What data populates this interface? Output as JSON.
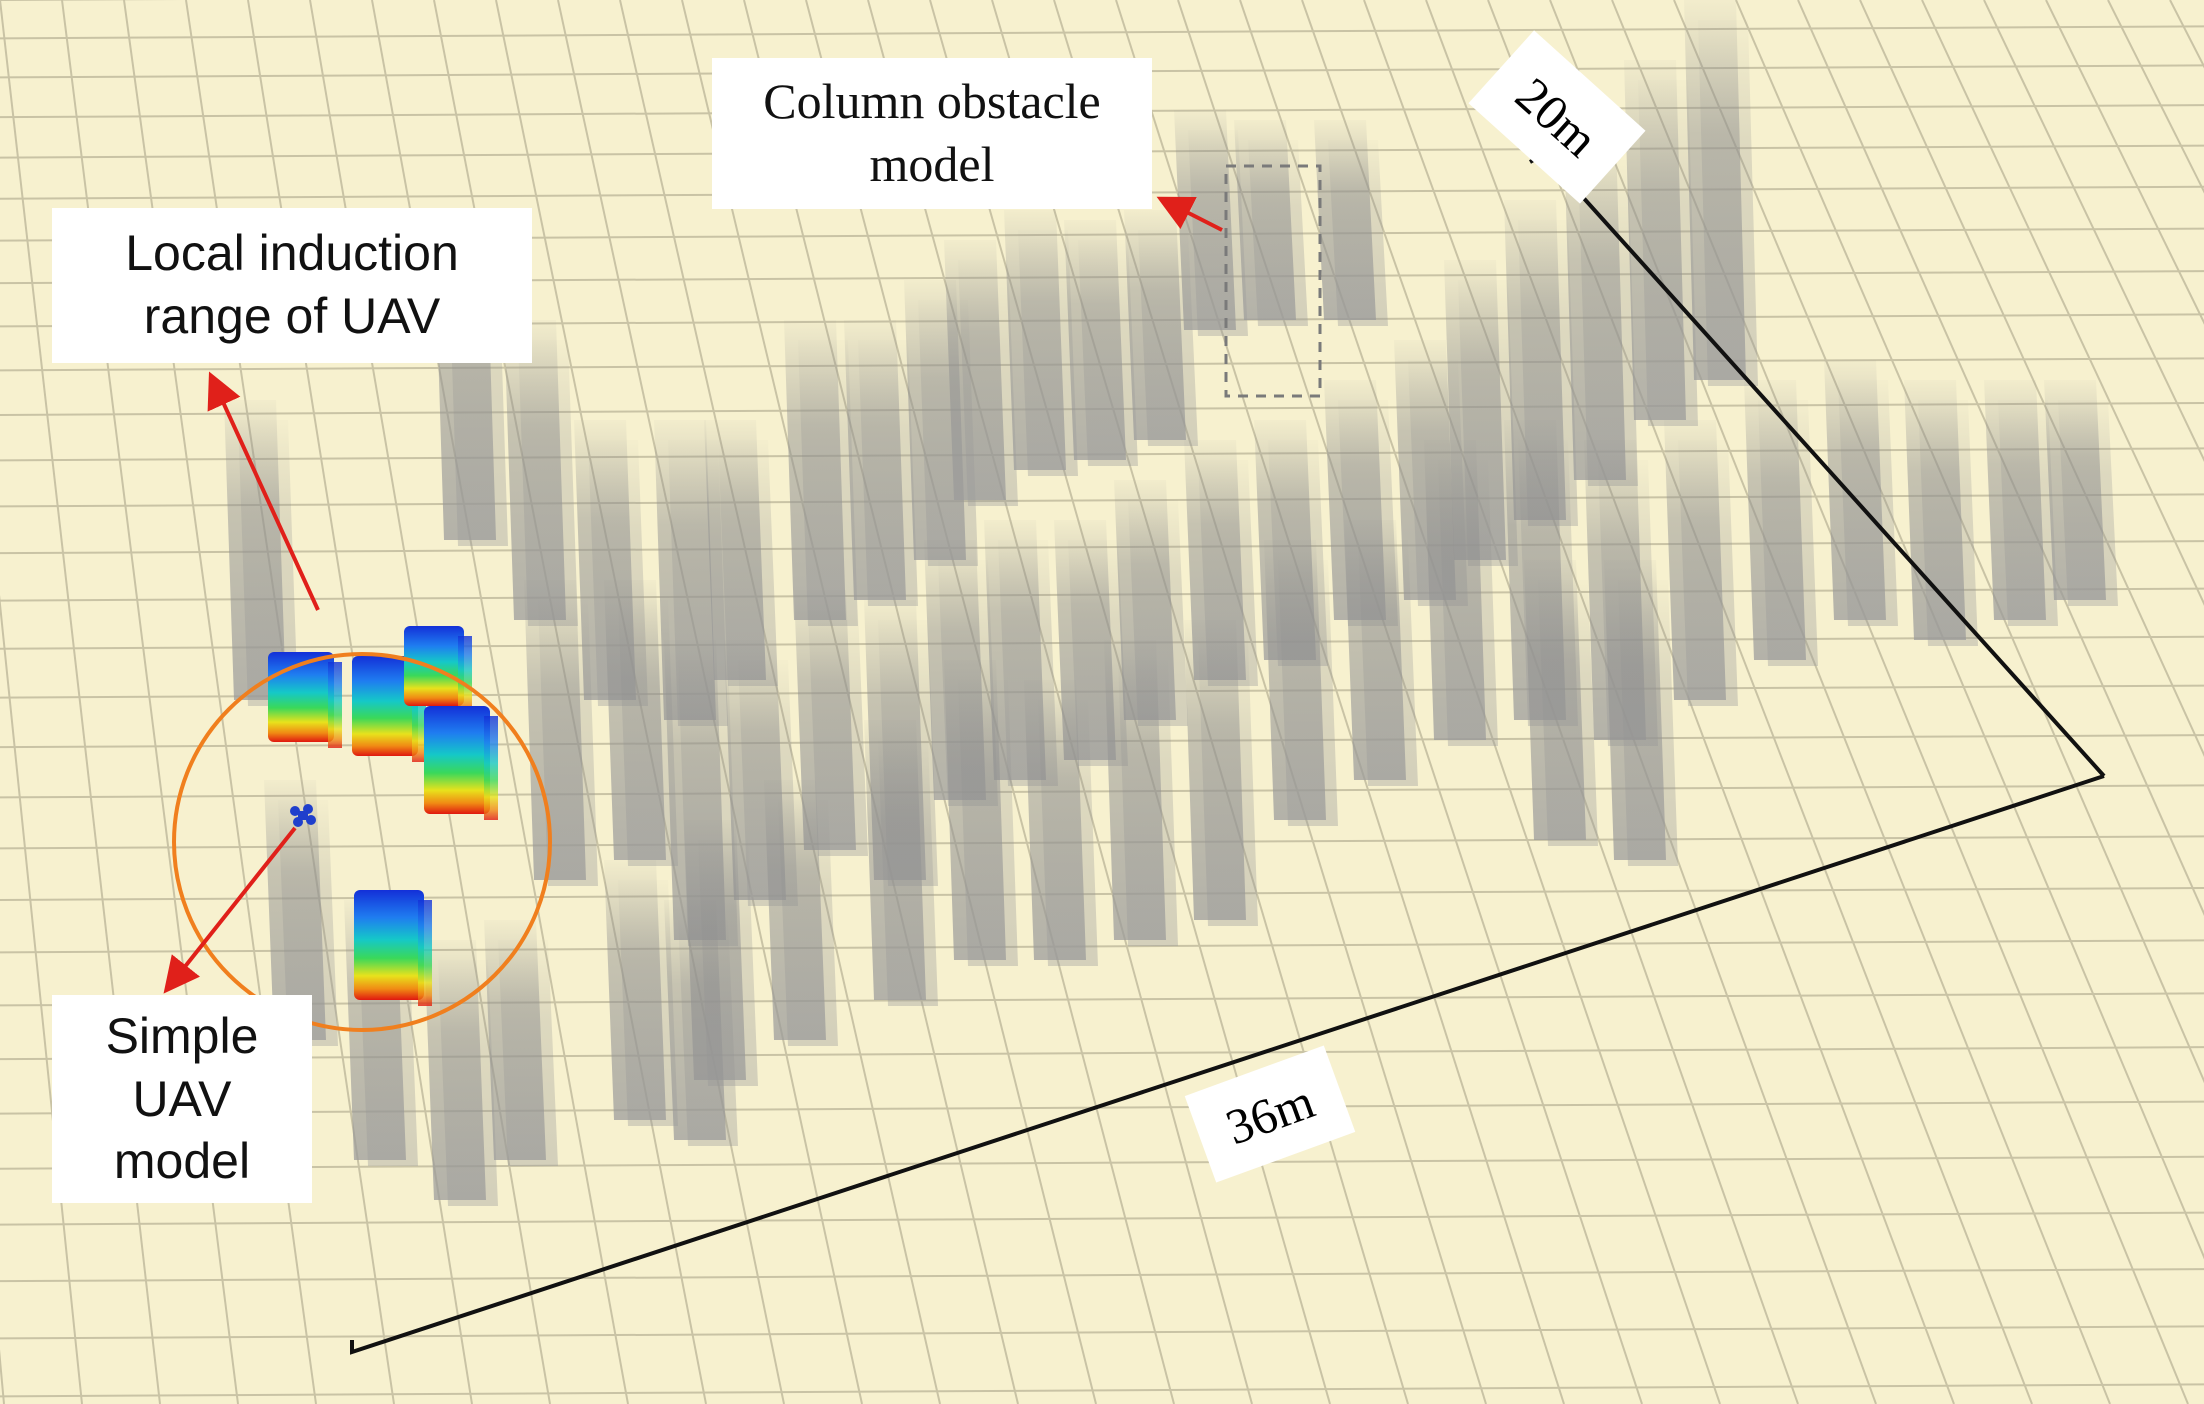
{
  "annotations": {
    "column_obstacle": [
      "Column obstacle",
      "model"
    ],
    "local_range": [
      "Local induction",
      "range of UAV"
    ],
    "simple_uav": [
      "Simple",
      "UAV",
      "model"
    ]
  },
  "dimensions": {
    "length": "36m",
    "width": "20m"
  },
  "colors": {
    "floor": "#f7f1cf",
    "grid": "#c9c3a5",
    "obstacle": "#9a9a9a",
    "range_circle": "#f07f1e",
    "arrow": "#e0201a",
    "uav": "#1f3fcc"
  },
  "icons": {
    "uav": "quadcopter-icon"
  }
}
